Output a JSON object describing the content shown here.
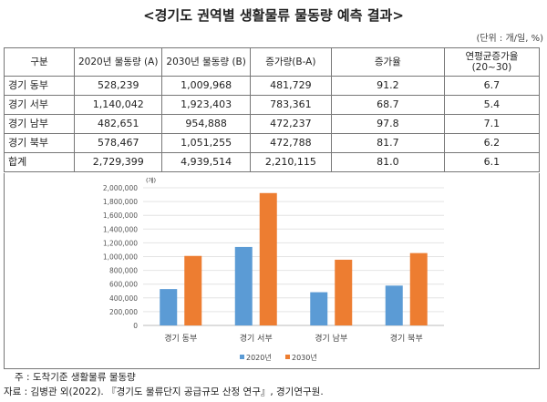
{
  "title": "<경기도 권역별 생활물류 물동량 예측 결과>",
  "unit": "(단위 : 개/일, %)",
  "table": {
    "headers": [
      "구분",
      "2020년 물동량 (A)",
      "2030년 물동량 (B)",
      "증가량(B-A)",
      "증가율",
      "연평균증가율",
      "(20~30)"
    ],
    "rows": [
      [
        "경기 동부",
        "528,239",
        "1,009,968",
        "481,729",
        "91.2",
        "6.7"
      ],
      [
        "경기 서부",
        "1,140,042",
        "1,923,403",
        "783,361",
        "68.7",
        "5.4"
      ],
      [
        "경기 남부",
        "482,651",
        "954,888",
        "472,237",
        "97.8",
        "7.1"
      ],
      [
        "경기 북부",
        "578,467",
        "1,051,255",
        "472,788",
        "81.7",
        "6.2"
      ],
      [
        "합계",
        "2,729,399",
        "4,939,514",
        "2,210,115",
        "81.0",
        "6.1"
      ]
    ]
  },
  "chart_data": {
    "type": "bar",
    "ylabel": "(개)",
    "ylim": [
      0,
      2000000
    ],
    "yticks": [
      "0",
      "200,000",
      "400,000",
      "600,000",
      "800,000",
      "1,000,000",
      "1,200,000",
      "1,400,000",
      "1,600,000",
      "1,800,000",
      "2,000,000"
    ],
    "categories": [
      "경기 동부",
      "경기 서부",
      "경기 남부",
      "경기 북부"
    ],
    "series": [
      {
        "name": "2020년",
        "color": "#5b9bd5",
        "values": [
          528239,
          1140042,
          482651,
          578467
        ]
      },
      {
        "name": "2030년",
        "color": "#ed7d31",
        "values": [
          1009968,
          1923403,
          954888,
          1051255
        ]
      }
    ],
    "grid": true,
    "legend": "bottom"
  },
  "notes": {
    "note": "주 : 도착기준 생활물류 물동량",
    "source": "자료 : 김병관 외(2022). 『경기도 물류단지 공급규모 산정 연구』, 경기연구원."
  }
}
